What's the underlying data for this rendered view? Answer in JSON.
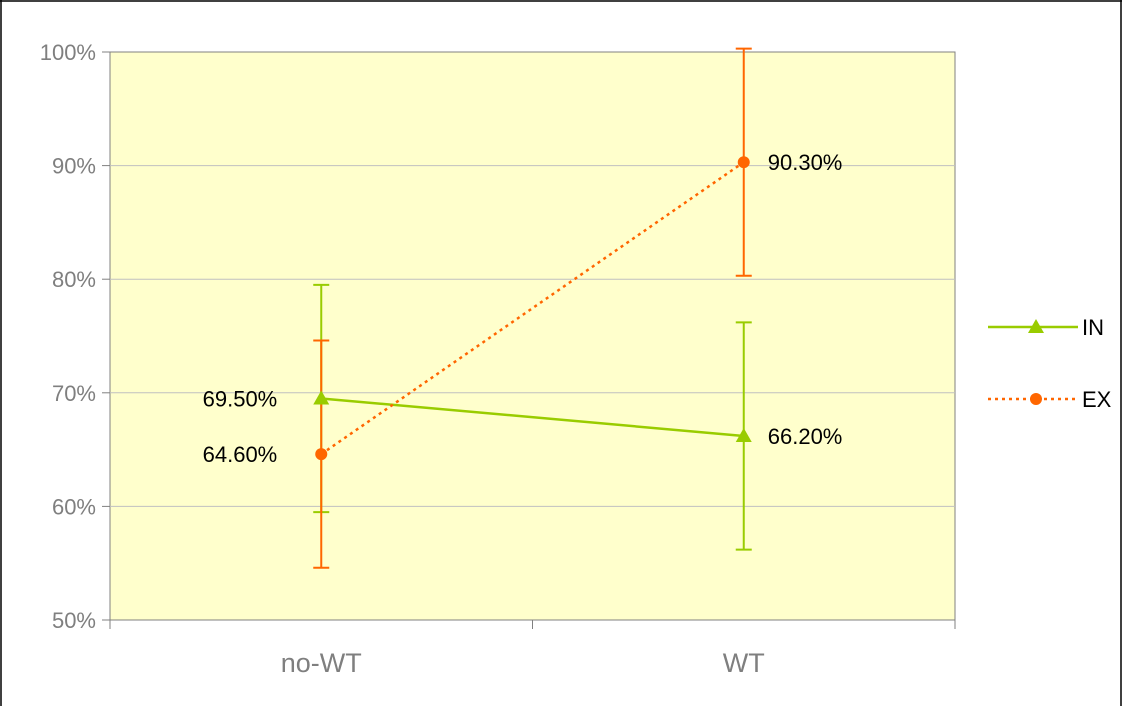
{
  "chart_data": {
    "type": "line",
    "categories": [
      "no-WT",
      "WT"
    ],
    "y_tick_labels": [
      "50%",
      "60%",
      "70%",
      "80%",
      "90%",
      "100%"
    ],
    "ylim": [
      50,
      100
    ],
    "grid": true,
    "legend_position": "right",
    "series": [
      {
        "name": "IN",
        "values": [
          69.5,
          66.2
        ],
        "error": [
          10,
          10
        ],
        "data_labels": [
          "69.50%",
          "66.20%"
        ],
        "color": "#99cc00",
        "line_style": "solid",
        "marker": "triangle"
      },
      {
        "name": "EX",
        "values": [
          64.6,
          90.3
        ],
        "error": [
          10,
          10
        ],
        "data_labels": [
          "64.60%",
          "90.30%"
        ],
        "color": "#ff6600",
        "line_style": "dotted",
        "marker": "circle"
      }
    ],
    "plot_background": "#ffffcc",
    "gridline_color": "#c0c0c0"
  }
}
